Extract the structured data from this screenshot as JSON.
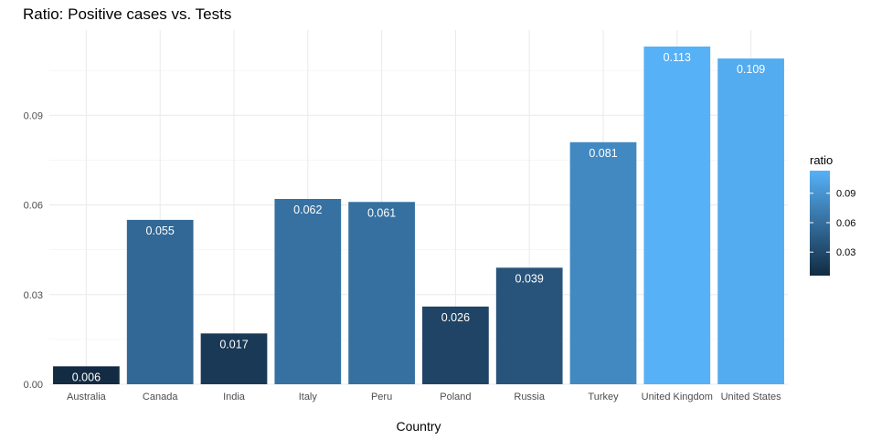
{
  "chart_data": {
    "type": "bar",
    "title": "Ratio: Positive cases vs. Tests",
    "xlabel": "Country",
    "ylabel": "",
    "categories": [
      "Australia",
      "Canada",
      "India",
      "Italy",
      "Peru",
      "Poland",
      "Russia",
      "Turkey",
      "United Kingdom",
      "United States"
    ],
    "values": [
      0.006,
      0.055,
      0.017,
      0.062,
      0.061,
      0.026,
      0.039,
      0.081,
      0.113,
      0.109
    ],
    "data_labels": [
      "0.006",
      "0.055",
      "0.017",
      "0.062",
      "0.061",
      "0.026",
      "0.039",
      "0.081",
      "0.113",
      "0.109"
    ],
    "y_ticks": [
      0.0,
      0.03,
      0.06,
      0.09
    ],
    "y_tick_labels": [
      "0.00",
      "0.03",
      "0.06",
      "0.09"
    ],
    "ylim": [
      0,
      0.1185
    ],
    "grid": true,
    "legend": {
      "title": "ratio",
      "placement": "right",
      "ticks": [
        0.03,
        0.06,
        0.09
      ],
      "tick_labels": [
        "0.03",
        "0.06",
        "0.09"
      ],
      "color_low": "#132B43",
      "color_high": "#56B1F7"
    }
  }
}
